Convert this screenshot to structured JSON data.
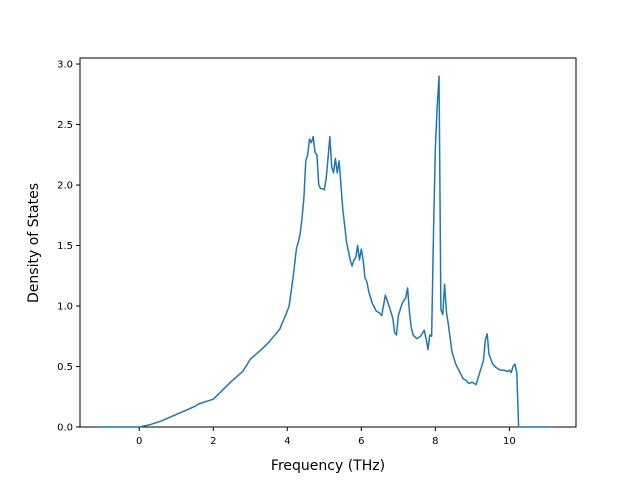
{
  "chart_data": {
    "type": "line",
    "title": "",
    "xlabel": "Frequency (THz)",
    "ylabel": "Density of States",
    "xlim": [
      -1.6,
      11.8
    ],
    "ylim": [
      0.0,
      3.05
    ],
    "xticks": [
      0,
      2,
      4,
      6,
      8,
      10
    ],
    "yticks": [
      0.0,
      0.5,
      1.0,
      1.5,
      2.0,
      2.5,
      3.0
    ],
    "xtick_labels": [
      "0",
      "2",
      "4",
      "6",
      "8",
      "10"
    ],
    "ytick_labels": [
      "0.0",
      "0.5",
      "1.0",
      "1.5",
      "2.0",
      "2.5",
      "3.0"
    ],
    "grid": false,
    "legend": "none",
    "series": [
      {
        "color": "#1f77b4",
        "x": [
          -1.05,
          0.0,
          0.3,
          0.6,
          0.9,
          1.2,
          1.5,
          1.6,
          2.0,
          2.3,
          2.5,
          2.8,
          3.0,
          3.3,
          3.5,
          3.8,
          3.85,
          3.95,
          4.05,
          4.15,
          4.25,
          4.3,
          4.35,
          4.4,
          4.45,
          4.5,
          4.55,
          4.6,
          4.65,
          4.7,
          4.75,
          4.8,
          4.85,
          4.9,
          4.95,
          5.0,
          5.05,
          5.1,
          5.15,
          5.2,
          5.25,
          5.3,
          5.35,
          5.4,
          5.5,
          5.6,
          5.7,
          5.75,
          5.8,
          5.85,
          5.9,
          5.95,
          6.0,
          6.05,
          6.1,
          6.15,
          6.2,
          6.3,
          6.4,
          6.5,
          6.55,
          6.65,
          6.75,
          6.85,
          6.9,
          6.95,
          7.0,
          7.1,
          7.2,
          7.25,
          7.3,
          7.35,
          7.4,
          7.5,
          7.6,
          7.7,
          7.75,
          7.8,
          7.85,
          7.9,
          7.95,
          8.0,
          8.05,
          8.1,
          8.15,
          8.2,
          8.25,
          8.3,
          8.35,
          8.45,
          8.55,
          8.65,
          8.75,
          8.85,
          8.9,
          9.0,
          9.1,
          9.2,
          9.3,
          9.35,
          9.4,
          9.45,
          9.5,
          9.55,
          9.65,
          9.75,
          9.85,
          9.95,
          10.0,
          10.05,
          10.1,
          10.15,
          10.2,
          10.25,
          10.5,
          11.2
        ],
        "y": [
          0.0,
          0.0,
          0.02,
          0.05,
          0.09,
          0.13,
          0.17,
          0.19,
          0.23,
          0.32,
          0.38,
          0.46,
          0.56,
          0.64,
          0.7,
          0.81,
          0.85,
          0.92,
          1.0,
          1.22,
          1.48,
          1.53,
          1.6,
          1.73,
          1.9,
          2.2,
          2.25,
          2.38,
          2.35,
          2.4,
          2.27,
          2.25,
          2.0,
          1.97,
          1.97,
          1.96,
          2.05,
          2.22,
          2.4,
          2.15,
          2.1,
          2.22,
          2.1,
          2.2,
          1.8,
          1.53,
          1.38,
          1.33,
          1.38,
          1.4,
          1.5,
          1.38,
          1.47,
          1.38,
          1.23,
          1.2,
          1.12,
          1.02,
          0.96,
          0.94,
          0.92,
          1.09,
          1.0,
          0.9,
          0.78,
          0.76,
          0.92,
          1.02,
          1.07,
          1.15,
          0.95,
          0.82,
          0.76,
          0.73,
          0.75,
          0.8,
          0.73,
          0.64,
          0.76,
          0.75,
          1.6,
          2.3,
          2.65,
          2.9,
          0.97,
          0.93,
          1.18,
          0.95,
          0.85,
          0.62,
          0.52,
          0.46,
          0.4,
          0.38,
          0.36,
          0.37,
          0.35,
          0.45,
          0.55,
          0.72,
          0.77,
          0.6,
          0.56,
          0.52,
          0.49,
          0.47,
          0.47,
          0.46,
          0.47,
          0.45,
          0.5,
          0.52,
          0.45,
          0.0,
          0.0,
          0.0
        ]
      }
    ]
  }
}
